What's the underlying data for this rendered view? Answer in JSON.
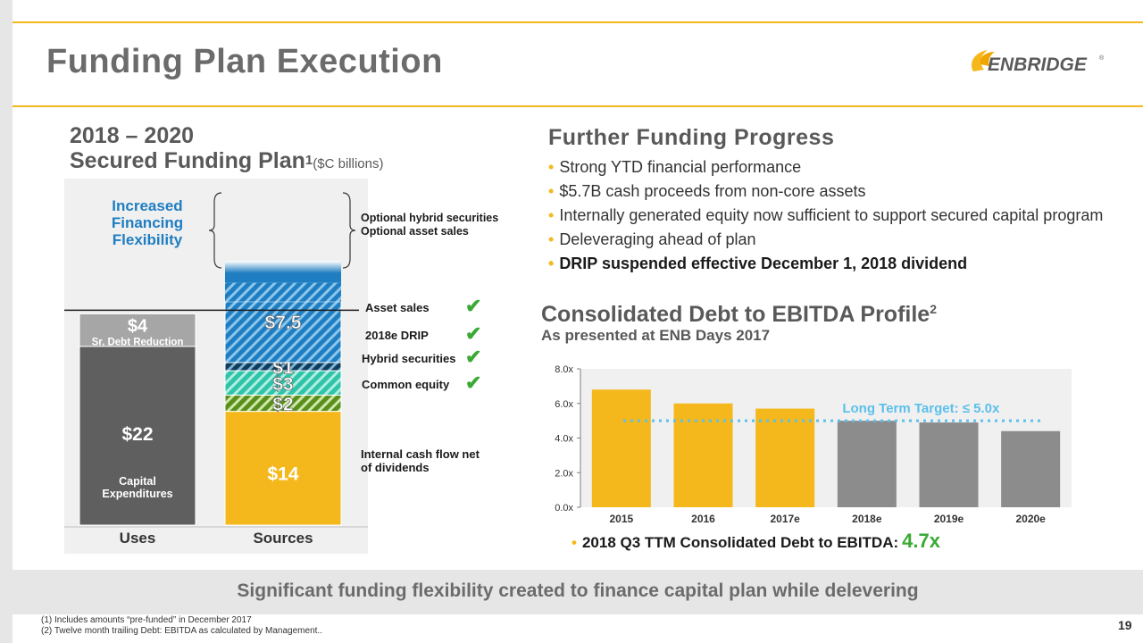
{
  "header": {
    "title": "Funding Plan Execution",
    "logo_text": "ENBRIDGE",
    "logo_mark": "®"
  },
  "colors": {
    "accent": "#f5b81c",
    "gray_bar": "#5f5f5f",
    "blue": "#1f7ec1",
    "teal": "#2ec4a9",
    "green_check": "#3aaa35",
    "target": "#5bc0eb",
    "gray_future": "#8c8c8c"
  },
  "plan": {
    "title_line1": "2018 – 2020",
    "title_line2": "Secured Funding Plan",
    "title_sup": "1",
    "units": "($C billions)",
    "flex_label": "Increased Financing Flexibility",
    "optional_label_1": "Optional hybrid securities",
    "optional_label_2": "Optional asset sales"
  },
  "checklist": [
    {
      "label": "Asset sales",
      "checked": true
    },
    {
      "label": "2018e DRIP",
      "checked": true
    },
    {
      "label": "Hybrid securities",
      "checked": true
    },
    {
      "label": "Common equity",
      "checked": true
    }
  ],
  "internal_label": "Internal cash flow net of dividends",
  "further": {
    "title": "Further Funding Progress",
    "bullets": [
      "Strong YTD financial performance",
      "$5.7B cash proceeds from non-core assets",
      "Internally generated equity now sufficient to support secured capital program",
      "Deleveraging ahead of plan",
      "DRIP suspended effective December 1, 2018 dividend"
    ]
  },
  "debt": {
    "title": "Consolidated Debt to EBITDA Profile",
    "title_sup": "2",
    "subtitle": "As presented at ENB Days 2017",
    "ttm_label": "2018 Q3 TTM Consolidated Debt to EBITDA",
    "ttm_sep": ":",
    "ttm_value": "4.7x"
  },
  "banner": "Significant funding flexibility created to finance capital plan while delevering",
  "footnotes": [
    "(1)  Includes amounts “pre-funded” in December 2017",
    "(2)  Twelve month trailing Debt: EBITDA as calculated by Management.."
  ],
  "page_number": "19",
  "chart_data": [
    {
      "type": "bar",
      "stacked": true,
      "title": "2018 – 2020 Secured Funding Plan ($C billions)",
      "categories": [
        "Uses",
        "Sources"
      ],
      "series": [
        {
          "name": "Capital Expenditures",
          "category": "Uses",
          "value": 22,
          "label": "$22",
          "sublabel": "Capital Expenditures",
          "style": "gray"
        },
        {
          "name": "Sr. Debt Reduction",
          "category": "Uses",
          "value": 4,
          "label": "$4",
          "sublabel": "Sr. Debt  Reduction",
          "style": "lightgray"
        },
        {
          "name": "Internal cash flow net of dividends",
          "category": "Sources",
          "value": 14,
          "label": "$14",
          "style": "orange"
        },
        {
          "name": "Common equity",
          "category": "Sources",
          "value": 2,
          "label": "$2",
          "style": "green-hatch"
        },
        {
          "name": "Hybrid securities",
          "category": "Sources",
          "value": 3,
          "label": "$3",
          "style": "teal-hatch"
        },
        {
          "name": "2018e DRIP",
          "category": "Sources",
          "value": 1,
          "label": "$1",
          "style": "navy-hatch"
        },
        {
          "name": "Asset sales",
          "category": "Sources",
          "value": 7.5,
          "label": "$7.5",
          "style": "blue-hatch"
        },
        {
          "name": "Optional hybrid securities / asset sales",
          "category": "Sources",
          "value": 5,
          "label": "",
          "style": "blue-gradient"
        }
      ],
      "ylim": [
        0,
        32
      ],
      "reference_line": 26
    },
    {
      "type": "bar",
      "title": "Consolidated Debt to EBITDA Profile",
      "categories": [
        "2015",
        "2016",
        "2017e",
        "2018e",
        "2019e",
        "2020e"
      ],
      "values": [
        6.8,
        6.0,
        5.7,
        5.0,
        4.9,
        4.4
      ],
      "bar_colors": [
        "#f5b81c",
        "#f5b81c",
        "#f5b81c",
        "#8c8c8c",
        "#8c8c8c",
        "#8c8c8c"
      ],
      "ylim": [
        0,
        8
      ],
      "yticks": [
        "0.0x",
        "2.0x",
        "4.0x",
        "6.0x",
        "8.0x"
      ],
      "target": {
        "value": 5.0,
        "label": "Long Term Target: ≤ 5.0x"
      }
    }
  ]
}
